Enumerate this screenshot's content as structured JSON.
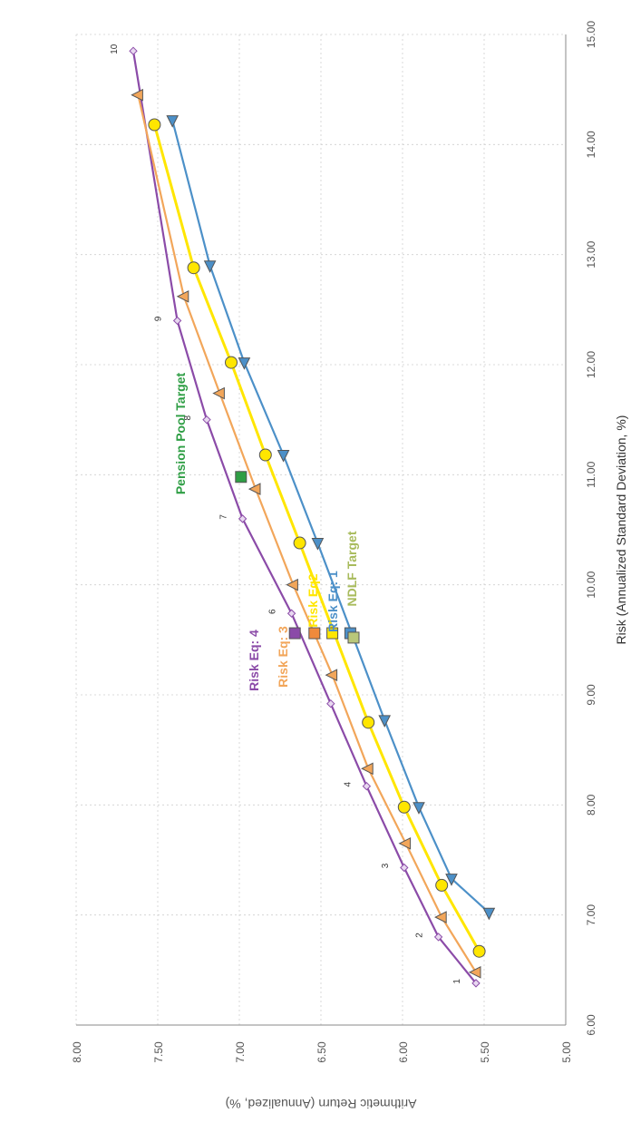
{
  "chart_data": {
    "type": "line",
    "orientation": "rotated-90-clockwise",
    "xlabel": "Risk (Annualized Standard Deviation, %)",
    "ylabel": "Arithmetic Return (Annualized, %)",
    "xlim": [
      6.0,
      15.0
    ],
    "ylim": [
      5.0,
      8.0
    ],
    "x_ticks": [
      "6.00",
      "7.00",
      "8.00",
      "9.00",
      "10.00",
      "11.00",
      "12.00",
      "13.00",
      "14.00",
      "15.00"
    ],
    "y_ticks": [
      "5.00",
      "5.50",
      "6.00",
      "6.50",
      "7.00",
      "7.50",
      "8.00"
    ],
    "grid": true,
    "series": [
      {
        "color": "#8B4BA8",
        "marker": "diamond",
        "x": [
          6.38,
          6.8,
          7.43,
          8.17,
          8.92,
          9.74,
          10.6,
          11.5,
          12.4,
          14.85
        ],
        "y": [
          5.55,
          5.78,
          5.99,
          6.22,
          6.44,
          6.68,
          6.98,
          7.2,
          7.38,
          7.65
        ],
        "point_labels": [
          "1",
          "2",
          "3",
          "4",
          "",
          "6",
          "7",
          "8",
          "9",
          "10"
        ]
      },
      {
        "color": "#F2A65A",
        "marker": "triangle",
        "x": [
          6.48,
          6.98,
          7.65,
          8.33,
          9.18,
          10.0,
          10.87,
          11.74,
          12.62,
          14.45
        ],
        "y": [
          5.55,
          5.76,
          5.98,
          6.21,
          6.43,
          6.67,
          6.9,
          7.12,
          7.34,
          7.62
        ]
      },
      {
        "color": "#FFE600",
        "marker": "circle",
        "x": [
          6.67,
          7.27,
          7.98,
          8.75,
          10.38,
          11.18,
          12.02,
          12.88,
          14.18
        ],
        "y": [
          5.53,
          5.76,
          5.99,
          6.21,
          6.63,
          6.84,
          7.05,
          7.28,
          7.52
        ]
      },
      {
        "color": "#4C90C8",
        "marker": "triangle-left",
        "x": [
          7.02,
          7.33,
          7.98,
          8.77,
          10.38,
          11.18,
          12.02,
          12.9,
          14.22
        ],
        "y": [
          5.47,
          5.7,
          5.9,
          6.11,
          6.52,
          6.73,
          6.97,
          7.18,
          7.41
        ]
      }
    ],
    "points": [
      {
        "label": "Pension Pool Target",
        "x": 10.98,
        "y": 6.99,
        "color": "#2E9E44",
        "label_color": "#2E9E44"
      },
      {
        "label": "Risk Eq: 4",
        "x": 9.56,
        "y": 6.66,
        "color": "#8B4BA8",
        "label_color": "#8B4BA8"
      },
      {
        "label": "Risk Eq: 3",
        "x": 9.56,
        "y": 6.54,
        "color": "#F08A3C",
        "label_color": "#F2A65A"
      },
      {
        "label": "Risk Eq2",
        "x": 9.56,
        "y": 6.43,
        "color": "#FFE600",
        "label_color": "#FFE600"
      },
      {
        "label": "Risk Eq: 1",
        "x": 9.56,
        "y": 6.32,
        "color": "#4C90C8",
        "label_color": "#4C90C8"
      },
      {
        "label": "NDLF Target",
        "x": 9.52,
        "y": 6.3,
        "color": "#B9C77A",
        "label_color": "#A8BB5C"
      }
    ]
  }
}
